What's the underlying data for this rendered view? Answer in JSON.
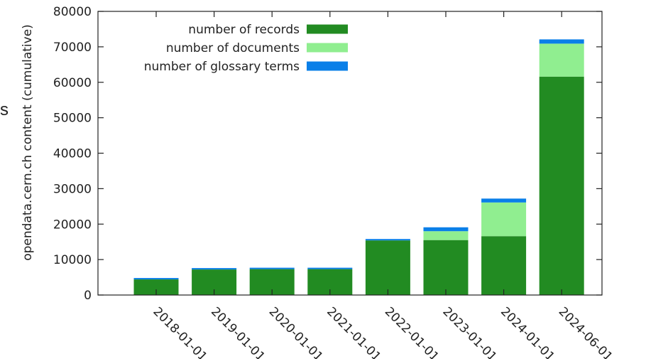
{
  "stray_text": "s",
  "chart_data": {
    "type": "bar",
    "stacked": true,
    "categories": [
      "2018-01-01",
      "2019-01-01",
      "2020-01-01",
      "2021-01-01",
      "2022-01-01",
      "2023-01-01",
      "2024-01-01",
      "2024-06-01"
    ],
    "series": [
      {
        "name": "number of records",
        "color": "#228b22",
        "values": [
          4400,
          7200,
          7300,
          7300,
          15400,
          15500,
          16600,
          61600
        ]
      },
      {
        "name": "number of documents",
        "color": "#90ee90",
        "values": [
          0,
          0,
          0,
          0,
          0,
          2500,
          9500,
          9300
        ]
      },
      {
        "name": "number of glossary terms",
        "color": "#0a7fe8",
        "values": [
          400,
          400,
          400,
          400,
          400,
          1100,
          1100,
          1200
        ]
      }
    ],
    "ylabel": "opendata.cern.ch content (cumulative)",
    "xlabel": "",
    "ylim": [
      0,
      80000
    ],
    "yticks": [
      0,
      10000,
      20000,
      30000,
      40000,
      50000,
      60000,
      70000,
      80000
    ],
    "legend_position": "top-left",
    "grid": false
  }
}
